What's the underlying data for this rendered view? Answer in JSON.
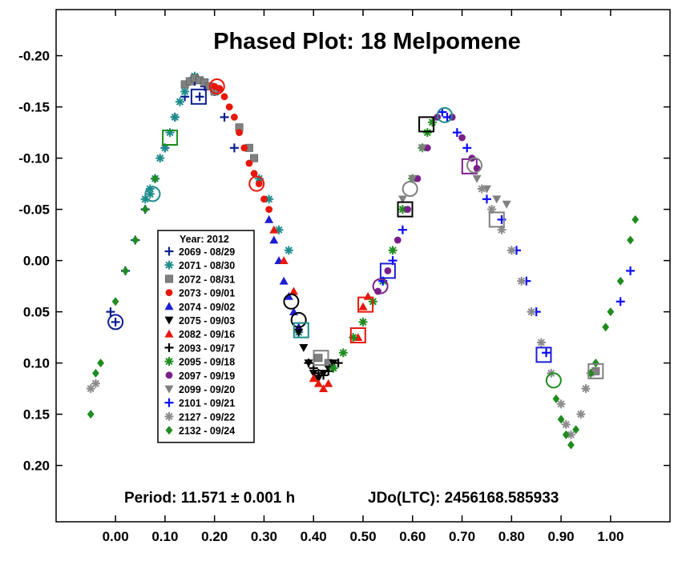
{
  "chart_data": {
    "type": "scatter",
    "title": "Phased Plot: 18 Melpomene",
    "xlabel": "",
    "ylabel": "",
    "xlim": [
      -0.12,
      1.12
    ],
    "ylim": [
      0.255,
      -0.245
    ],
    "y_inverted": true,
    "grid": false,
    "x_ticks": [
      "0.00",
      "0.10",
      "0.20",
      "0.30",
      "0.40",
      "0.50",
      "0.60",
      "0.70",
      "0.80",
      "0.90",
      "1.00"
    ],
    "x_tick_values": [
      0.0,
      0.1,
      0.2,
      0.3,
      0.4,
      0.5,
      0.6,
      0.7,
      0.8,
      0.9,
      1.0
    ],
    "y_ticks": [
      "-0.20",
      "-0.15",
      "-0.10",
      "-0.05",
      "0.00",
      "0.05",
      "0.10",
      "0.15",
      "0.20"
    ],
    "y_tick_values": [
      -0.2,
      -0.15,
      -0.1,
      -0.05,
      0.0,
      0.05,
      0.1,
      0.15,
      0.2
    ],
    "legend": {
      "title": "Year: 2012",
      "placement": "middle-left"
    },
    "annotations": {
      "period": "Period: 11.571 ± 0.001 h",
      "jdo": "JDo(LTC): 2456168.585933"
    },
    "series": [
      {
        "name": "2069 - 08/29",
        "marker": "plus",
        "color": "#0a1f8f",
        "x": [
          -0.01,
          0.02,
          0.04,
          0.06,
          0.08,
          0.1,
          0.12,
          0.14,
          0.16,
          0.17,
          0.18,
          0.2,
          0.22,
          0.24,
          0.0
        ],
        "y": [
          0.05,
          0.01,
          -0.02,
          -0.05,
          -0.08,
          -0.11,
          -0.14,
          -0.16,
          -0.175,
          -0.16,
          -0.17,
          -0.165,
          -0.14,
          -0.11,
          0.06
        ]
      },
      {
        "name": "2071 - 08/30",
        "marker": "asterisk",
        "color": "#1e8c8c",
        "x": [
          0.06,
          0.07,
          0.08,
          0.09,
          0.1,
          0.11,
          0.12,
          0.13,
          0.14,
          0.15,
          0.16,
          0.29,
          0.31,
          0.33,
          0.35,
          0.37,
          0.07
        ],
        "y": [
          -0.06,
          -0.07,
          -0.08,
          -0.1,
          -0.11,
          -0.125,
          -0.14,
          -0.155,
          -0.165,
          -0.175,
          -0.18,
          -0.08,
          -0.06,
          -0.03,
          -0.01,
          0.07,
          -0.065
        ]
      },
      {
        "name": "2072 - 08/31",
        "marker": "square",
        "color": "#808080",
        "x": [
          0.14,
          0.15,
          0.16,
          0.17,
          0.18,
          0.19,
          0.2,
          0.25,
          0.27,
          0.28,
          0.41,
          0.43,
          0.97
        ],
        "y": [
          -0.172,
          -0.175,
          -0.178,
          -0.176,
          -0.174,
          -0.17,
          -0.165,
          -0.13,
          -0.11,
          -0.1,
          0.095,
          0.1,
          0.108
        ]
      },
      {
        "name": "2073 - 09/01",
        "marker": "circle",
        "color": "#e8170b",
        "x": [
          0.2,
          0.21,
          0.22,
          0.23,
          0.24,
          0.25,
          0.26,
          0.27,
          0.28,
          0.29,
          0.3,
          0.31
        ],
        "y": [
          -0.17,
          -0.168,
          -0.16,
          -0.15,
          -0.14,
          -0.125,
          -0.11,
          -0.095,
          -0.085,
          -0.075,
          -0.06,
          -0.05
        ]
      },
      {
        "name": "2074 - 09/02",
        "marker": "triangle-up",
        "color": "#1d1dd6",
        "x": [
          0.31,
          0.32,
          0.33,
          0.34,
          0.35,
          0.36,
          0.37
        ],
        "y": [
          -0.04,
          -0.02,
          0.0,
          0.02,
          0.035,
          0.05,
          0.065
        ]
      },
      {
        "name": "2075 - 09/03",
        "marker": "triangle-down",
        "color": "#000000",
        "x": [
          0.37,
          0.38,
          0.39,
          0.4,
          0.41,
          0.42,
          0.43,
          0.44
        ],
        "y": [
          0.07,
          0.085,
          0.1,
          0.11,
          0.115,
          0.11,
          0.105,
          0.1
        ]
      },
      {
        "name": "2082 - 09/16",
        "marker": "triangle-up",
        "color": "#e8170b",
        "x": [
          0.32,
          0.34,
          0.36,
          0.4,
          0.41,
          0.42,
          0.43,
          0.49,
          0.5,
          0.51
        ],
        "y": [
          -0.03,
          0.0,
          0.03,
          0.115,
          0.12,
          0.125,
          0.12,
          0.075,
          0.045,
          0.035
        ]
      },
      {
        "name": "2093 - 09/17",
        "marker": "plus",
        "color": "#000000",
        "x": [
          0.39,
          0.4,
          0.41,
          0.42,
          0.43,
          0.44,
          0.45
        ],
        "y": [
          0.1,
          0.105,
          0.11,
          0.112,
          0.108,
          0.105,
          0.1
        ]
      },
      {
        "name": "2095 - 09/18",
        "marker": "asterisk",
        "color": "#1e8c1e",
        "x": [
          0.44,
          0.46,
          0.48,
          0.5,
          0.52,
          0.54,
          0.56,
          0.58,
          0.6,
          0.62,
          0.63,
          0.64
        ],
        "y": [
          0.105,
          0.09,
          0.075,
          0.06,
          0.04,
          0.02,
          -0.01,
          -0.05,
          -0.08,
          -0.11,
          -0.125,
          -0.135
        ]
      },
      {
        "name": "2097 - 09/19",
        "marker": "circle",
        "color": "#7a1f8a",
        "x": [
          0.53,
          0.55,
          0.57,
          0.59,
          0.61,
          0.63,
          0.65,
          0.68,
          0.7,
          0.72,
          0.73
        ],
        "y": [
          0.03,
          0.01,
          -0.02,
          -0.05,
          -0.08,
          -0.11,
          -0.14,
          -0.14,
          -0.12,
          -0.1,
          -0.09
        ]
      },
      {
        "name": "2099 - 09/20",
        "marker": "triangle-down",
        "color": "#808080",
        "x": [
          0.58,
          0.6,
          0.62,
          0.73,
          0.75,
          0.77,
          0.79
        ],
        "y": [
          -0.06,
          -0.08,
          -0.11,
          -0.08,
          -0.07,
          -0.06,
          -0.055
        ]
      },
      {
        "name": "2101 - 09/21",
        "marker": "plus",
        "color": "#0a0aff",
        "x": [
          0.54,
          0.56,
          0.58,
          0.66,
          0.67,
          0.69,
          0.71,
          0.75,
          0.78,
          0.81,
          0.83,
          0.85,
          0.87,
          1.02,
          1.04
        ],
        "y": [
          0.02,
          0.0,
          -0.03,
          -0.145,
          -0.14,
          -0.125,
          -0.11,
          -0.06,
          -0.04,
          -0.01,
          0.02,
          0.05,
          0.09,
          0.04,
          0.01
        ]
      },
      {
        "name": "2127 - 09/22",
        "marker": "asterisk",
        "color": "#8c8c8c",
        "x": [
          -0.05,
          -0.04,
          0.74,
          0.76,
          0.78,
          0.8,
          0.82,
          0.84,
          0.86,
          0.88,
          0.9,
          0.91,
          0.92,
          0.94,
          0.95,
          0.96
        ],
        "y": [
          0.125,
          0.12,
          -0.07,
          -0.05,
          -0.03,
          -0.01,
          0.02,
          0.05,
          0.08,
          0.11,
          0.14,
          0.16,
          0.17,
          0.15,
          0.125,
          0.11
        ]
      },
      {
        "name": "2132 - 09/24",
        "marker": "diamond",
        "color": "#1e8c1e",
        "x": [
          -0.05,
          -0.04,
          -0.03,
          0.0,
          0.02,
          0.04,
          0.06,
          0.08,
          0.89,
          0.9,
          0.91,
          0.92,
          0.93,
          0.96,
          0.97,
          0.99,
          1.0,
          1.02,
          1.04,
          1.05
        ],
        "y": [
          0.15,
          0.11,
          0.1,
          0.04,
          0.01,
          -0.02,
          -0.05,
          -0.08,
          0.135,
          0.155,
          0.17,
          0.18,
          0.165,
          0.11,
          0.1,
          0.065,
          0.05,
          0.02,
          -0.02,
          -0.04
        ]
      }
    ],
    "highlighted_markers": [
      {
        "x": 0.0,
        "y": 0.06,
        "shape": "circle",
        "color": "#0a1f8f"
      },
      {
        "x": 0.075,
        "y": -0.065,
        "shape": "circle",
        "color": "#1e8c8c"
      },
      {
        "x": 0.11,
        "y": -0.12,
        "shape": "square",
        "color": "#1e8c1e"
      },
      {
        "x": 0.168,
        "y": -0.16,
        "shape": "square",
        "color": "#0a1f8f"
      },
      {
        "x": 0.205,
        "y": -0.17,
        "shape": "circle",
        "color": "#e8170b"
      },
      {
        "x": 0.285,
        "y": -0.075,
        "shape": "circle",
        "color": "#e8170b"
      },
      {
        "x": 0.355,
        "y": 0.04,
        "shape": "circle",
        "color": "#000000"
      },
      {
        "x": 0.37,
        "y": 0.058,
        "shape": "circle",
        "color": "#000000"
      },
      {
        "x": 0.375,
        "y": 0.068,
        "shape": "square",
        "color": "#1e8c8c"
      },
      {
        "x": 0.415,
        "y": 0.095,
        "shape": "square",
        "color": "#808080"
      },
      {
        "x": 0.49,
        "y": 0.073,
        "shape": "square",
        "color": "#e8170b"
      },
      {
        "x": 0.505,
        "y": 0.043,
        "shape": "square",
        "color": "#e8170b"
      },
      {
        "x": 0.535,
        "y": 0.025,
        "shape": "circle",
        "color": "#7a1f8a"
      },
      {
        "x": 0.55,
        "y": 0.01,
        "shape": "square",
        "color": "#1d1dd6"
      },
      {
        "x": 0.585,
        "y": -0.05,
        "shape": "square",
        "color": "#000000"
      },
      {
        "x": 0.595,
        "y": -0.07,
        "shape": "circle",
        "color": "#808080"
      },
      {
        "x": 0.628,
        "y": -0.133,
        "shape": "square",
        "color": "#000000"
      },
      {
        "x": 0.665,
        "y": -0.142,
        "shape": "circle",
        "color": "#1e8c8c"
      },
      {
        "x": 0.715,
        "y": -0.092,
        "shape": "square",
        "color": "#7a1f8a"
      },
      {
        "x": 0.725,
        "y": -0.093,
        "shape": "circle",
        "color": "#808080"
      },
      {
        "x": 0.77,
        "y": -0.04,
        "shape": "square",
        "color": "#808080"
      },
      {
        "x": 0.865,
        "y": 0.092,
        "shape": "square",
        "color": "#1d1dd6"
      },
      {
        "x": 0.885,
        "y": 0.117,
        "shape": "circle",
        "color": "#1e8c1e"
      },
      {
        "x": 0.97,
        "y": 0.108,
        "shape": "square",
        "color": "#808080"
      }
    ]
  }
}
